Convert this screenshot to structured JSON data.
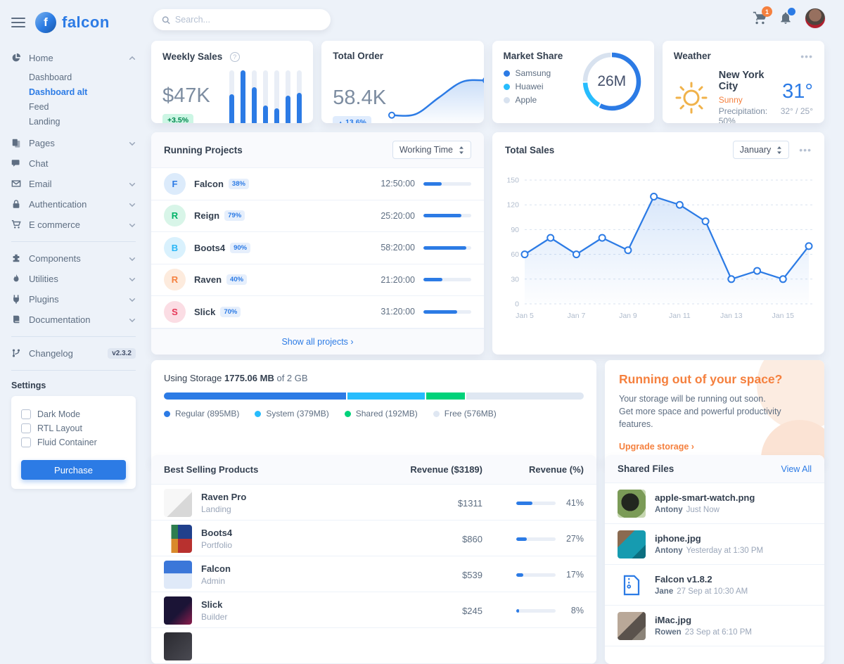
{
  "topnav": {
    "search_placeholder": "Search...",
    "cart_badge": "1"
  },
  "brand": {
    "name": "falcon",
    "mark_letter": "f"
  },
  "sidebar": {
    "items": [
      {
        "icon": "chart-pie-icon",
        "label": "Home",
        "chevron": "up",
        "children": [
          {
            "label": "Dashboard",
            "active": false
          },
          {
            "label": "Dashboard alt",
            "active": true
          },
          {
            "label": "Feed",
            "active": false
          },
          {
            "label": "Landing",
            "active": false
          }
        ]
      },
      {
        "icon": "pages-icon",
        "label": "Pages",
        "chevron": "down"
      },
      {
        "icon": "chat-icon",
        "label": "Chat"
      },
      {
        "icon": "email-icon",
        "label": "Email",
        "chevron": "down"
      },
      {
        "icon": "lock-icon",
        "label": "Authentication",
        "chevron": "down"
      },
      {
        "icon": "shopping-cart-icon",
        "label": "E commerce",
        "chevron": "down",
        "divider_after": true
      },
      {
        "icon": "puzzle-icon",
        "label": "Components",
        "chevron": "down"
      },
      {
        "icon": "flame-icon",
        "label": "Utilities",
        "chevron": "down"
      },
      {
        "icon": "plug-icon",
        "label": "Plugins",
        "chevron": "down"
      },
      {
        "icon": "book-icon",
        "label": "Documentation",
        "chevron": "down",
        "divider_after": true
      },
      {
        "icon": "code-branch-icon",
        "label": "Changelog",
        "badge": "v2.3.2"
      }
    ],
    "settings": {
      "title": "Settings",
      "options": [
        "Dark Mode",
        "RTL Layout",
        "Fluid Container"
      ],
      "purchase_label": "Purchase"
    }
  },
  "weekly_sales": {
    "title": "Weekly Sales",
    "value": "$47K",
    "change": "+3.5%"
  },
  "total_order": {
    "title": "Total Order",
    "value": "58.4K",
    "change": "13.6%",
    "caret": "▲"
  },
  "market_share": {
    "title": "Market Share",
    "center": "26M",
    "legend": [
      {
        "label": "Samsung",
        "color": "#2c7be5"
      },
      {
        "label": "Huawei",
        "color": "#27bcfd"
      },
      {
        "label": "Apple",
        "color": "#d8e2ef"
      }
    ]
  },
  "weather": {
    "title": "Weather",
    "city": "New York City",
    "condition": "Sunny",
    "precipitation": "Precipitation: 50%",
    "temp": "31°",
    "range": "32° / 25°"
  },
  "running_projects": {
    "title": "Running Projects",
    "filter": "Working Time",
    "rows": [
      {
        "initial": "F",
        "name": "Falcon",
        "badge": "38%",
        "time": "12:50:00",
        "progress": 38,
        "color": "#2c7be5",
        "bg": "#dcebfb"
      },
      {
        "initial": "R",
        "name": "Reign",
        "badge": "79%",
        "time": "25:20:00",
        "progress": 79,
        "color": "#00b267",
        "bg": "#d8f5e8"
      },
      {
        "initial": "B",
        "name": "Boots4",
        "badge": "90%",
        "time": "58:20:00",
        "progress": 90,
        "color": "#29b6f6",
        "bg": "#d9f1fd"
      },
      {
        "initial": "R",
        "name": "Raven",
        "badge": "40%",
        "time": "21:20:00",
        "progress": 40,
        "color": "#f5803e",
        "bg": "#fdebdd"
      },
      {
        "initial": "S",
        "name": "Slick",
        "badge": "70%",
        "time": "31:20:00",
        "progress": 70,
        "color": "#e63757",
        "bg": "#fbdde4"
      }
    ],
    "footer_link": "Show all projects ›"
  },
  "total_sales": {
    "title": "Total Sales",
    "filter": "January"
  },
  "storage": {
    "prefix": "Using Storage",
    "used": "1775.06 MB",
    "suffix": "of 2 GB",
    "total_mb": 2048,
    "segments": [
      {
        "label": "Regular (895MB)",
        "mb": 895,
        "color": "#2c7be5"
      },
      {
        "label": "System (379MB)",
        "mb": 379,
        "color": "#27bcfd"
      },
      {
        "label": "Shared (192MB)",
        "mb": 192,
        "color": "#00d27a"
      },
      {
        "label": "Free (576MB)",
        "mb": 576,
        "color": "#dfe7f2"
      }
    ]
  },
  "space_promo": {
    "title": "Running out of your space?",
    "body": "Your storage will be running out soon. Get more space and powerful productivity features.",
    "link": "Upgrade storage ›"
  },
  "best_selling": {
    "title": "Best Selling Products",
    "col_revenue": "Revenue ($3189)",
    "col_percent": "Revenue (%)",
    "rows": [
      {
        "name": "Raven Pro",
        "category": "Landing",
        "revenue": "$1311",
        "percent": 41,
        "thumb": "raven-pro"
      },
      {
        "name": "Boots4",
        "category": "Portfolio",
        "revenue": "$860",
        "percent": 27,
        "thumb": "boots4"
      },
      {
        "name": "Falcon",
        "category": "Admin",
        "revenue": "$539",
        "percent": 17,
        "thumb": "falcon"
      },
      {
        "name": "Slick",
        "category": "Builder",
        "revenue": "$245",
        "percent": 8,
        "thumb": "slick"
      },
      {
        "name": "",
        "category": "",
        "revenue": "",
        "percent": null,
        "thumb": "dark"
      }
    ]
  },
  "shared_files": {
    "title": "Shared Files",
    "view_all": "View All",
    "rows": [
      {
        "name": "apple-smart-watch.png",
        "author": "Antony",
        "time": "Just Now",
        "thumb": "watch"
      },
      {
        "name": "iphone.jpg",
        "author": "Antony",
        "time": "Yesterday at 1:30 PM",
        "thumb": "iphone"
      },
      {
        "name": "Falcon v1.8.2",
        "author": "Jane",
        "time": "27 Sep at 10:30 AM",
        "thumb": "zip"
      },
      {
        "name": "iMac.jpg",
        "author": "Rowen",
        "time": "23 Sep at 6:10 PM",
        "thumb": "imac"
      }
    ]
  },
  "chart_data": [
    {
      "id": "weekly_sales_bars",
      "type": "bar",
      "title": "Weekly Sales",
      "values": [
        58,
        100,
        70,
        37,
        33,
        55,
        60
      ],
      "ylim": [
        0,
        100
      ],
      "color": "#2c7be5"
    },
    {
      "id": "total_order_curve",
      "type": "line",
      "title": "Total Order",
      "values": [
        14,
        16,
        52,
        86,
        89
      ],
      "ylim": [
        0,
        100
      ],
      "color": "#2c7be5",
      "markers": "ends"
    },
    {
      "id": "market_share_donut",
      "type": "pie",
      "title": "Market Share",
      "center_label": "26M",
      "segments": [
        {
          "name": "Samsung",
          "percent": 58,
          "color": "#2c7be5"
        },
        {
          "name": "Huawei",
          "percent": 17,
          "color": "#27bcfd"
        },
        {
          "name": "Apple",
          "percent": 25,
          "color": "#d8e2ef"
        }
      ]
    },
    {
      "id": "total_sales_line",
      "type": "line",
      "title": "Total Sales",
      "x": [
        "Jan 5",
        "Jan 6",
        "Jan 7",
        "Jan 8",
        "Jan 9",
        "Jan 10",
        "Jan 11",
        "Jan 12",
        "Jan 13",
        "Jan 14",
        "Jan 15",
        "Jan 16"
      ],
      "x_tick_labels": [
        "Jan 5",
        "Jan 7",
        "Jan 9",
        "Jan 11",
        "Jan 13",
        "Jan 15"
      ],
      "values": [
        60,
        80,
        60,
        80,
        65,
        130,
        120,
        100,
        30,
        40,
        30,
        70
      ],
      "ylim": [
        0,
        150
      ],
      "yticks": [
        0,
        30,
        60,
        90,
        120,
        150
      ],
      "grid": true,
      "color": "#2c7be5"
    }
  ]
}
